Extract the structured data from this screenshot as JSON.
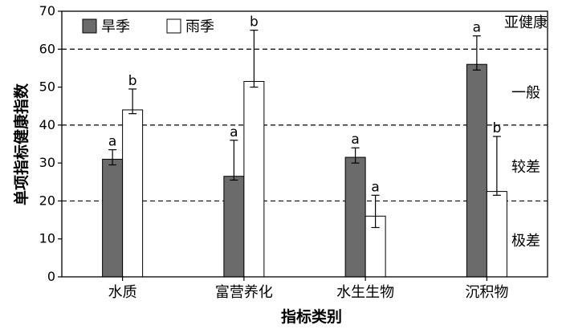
{
  "chart_data": {
    "type": "bar",
    "categories": [
      "水质",
      "富营养化",
      "水生生物",
      "沉积物"
    ],
    "series": [
      {
        "name": "旱季",
        "color": "#6b6b6b",
        "values": [
          31,
          26.5,
          31.5,
          56
        ],
        "error_low": [
          29.5,
          25.5,
          30,
          54.5
        ],
        "error_high": [
          33.5,
          36,
          34,
          63.5
        ],
        "sig": [
          "a",
          "a",
          "a",
          "a"
        ]
      },
      {
        "name": "雨季",
        "color": "#ffffff",
        "values": [
          44,
          51.5,
          16,
          22.5
        ],
        "error_low": [
          43,
          50,
          13,
          21.5
        ],
        "error_high": [
          49.5,
          65,
          21.5,
          37
        ],
        "sig": [
          "b",
          "b",
          "a",
          "b"
        ]
      }
    ],
    "xlabel": "指标类别",
    "ylabel": "单项指标健康指数",
    "ylim": [
      0,
      70
    ],
    "yticks": [
      0,
      10,
      20,
      30,
      40,
      50,
      60,
      70
    ],
    "reference_lines": [
      20,
      40,
      60
    ],
    "bands": [
      {
        "label": "亚健康",
        "y": 67
      },
      {
        "label": "一般",
        "y": 48.5
      },
      {
        "label": "较差",
        "y": 29
      },
      {
        "label": "极差",
        "y": 9.5
      }
    ],
    "legend_position": "top-left",
    "grid": false
  }
}
